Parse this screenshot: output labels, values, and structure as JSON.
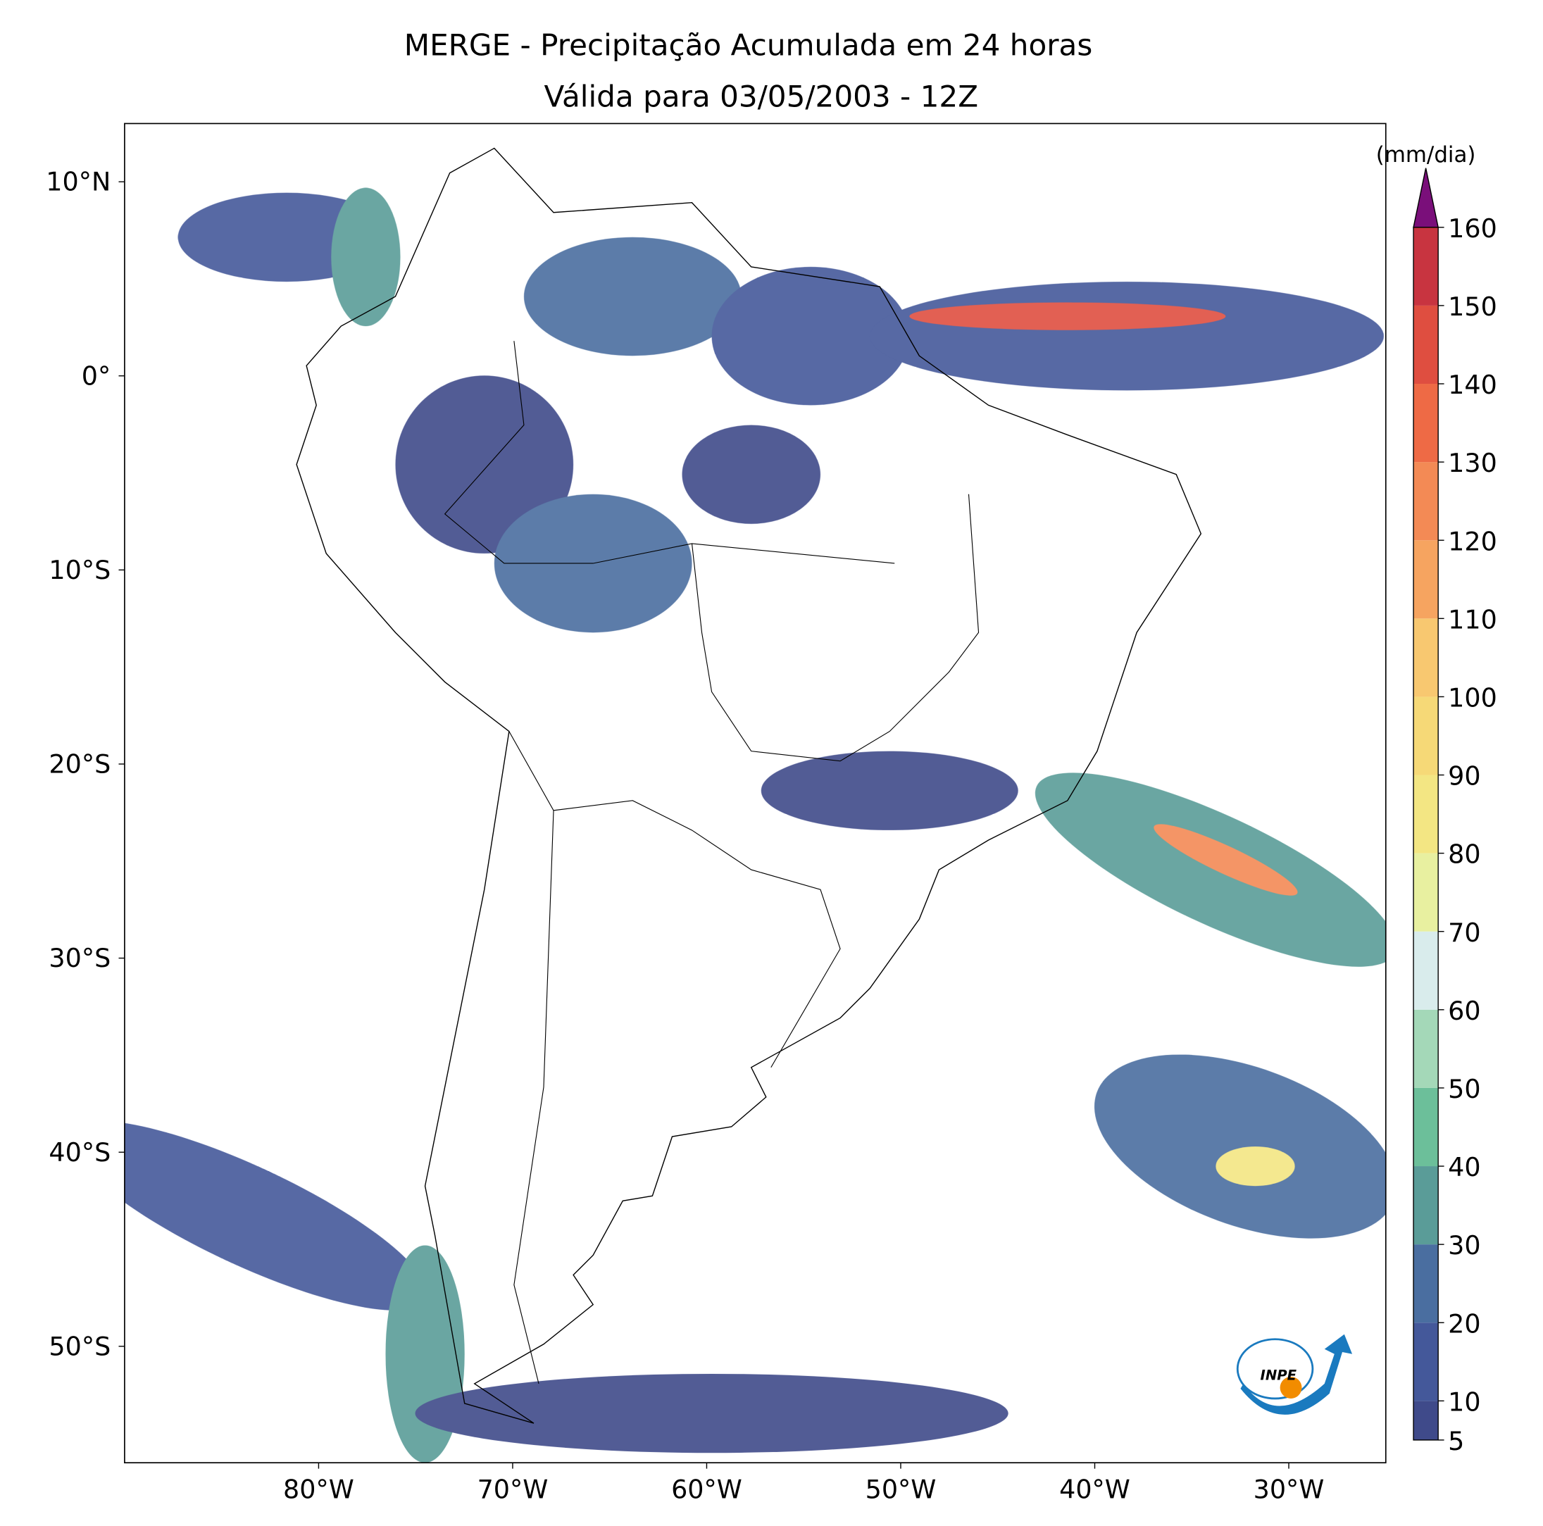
{
  "chart_data": {
    "type": "map",
    "title": "MERGE - Precipitação Acumulada em 24 horas",
    "subtitle": "Válida para 03/05/2003 - 12Z",
    "xlim": [
      -90,
      -25
    ],
    "ylim": [
      -56,
      13
    ],
    "xticks": [
      {
        "value": -80,
        "label": "80°W"
      },
      {
        "value": -70,
        "label": "70°W"
      },
      {
        "value": -60,
        "label": "60°W"
      },
      {
        "value": -50,
        "label": "50°W"
      },
      {
        "value": -40,
        "label": "40°W"
      },
      {
        "value": -30,
        "label": "30°W"
      }
    ],
    "yticks": [
      {
        "value": 10,
        "label": "10°N"
      },
      {
        "value": 0,
        "label": "0°"
      },
      {
        "value": -10,
        "label": "10°S"
      },
      {
        "value": -20,
        "label": "20°S"
      },
      {
        "value": -30,
        "label": "30°S"
      },
      {
        "value": -40,
        "label": "40°S"
      },
      {
        "value": -50,
        "label": "50°S"
      }
    ],
    "colorbar": {
      "label": "(mm/dia)",
      "lim": [
        5,
        160
      ],
      "ticks": [
        5,
        10,
        20,
        30,
        40,
        50,
        60,
        70,
        80,
        90,
        100,
        110,
        120,
        130,
        140,
        150,
        160
      ],
      "colors": [
        "#3f4a8a",
        "#44589a",
        "#4a6ea0",
        "#5a9c98",
        "#6cbf9a",
        "#a4d8b8",
        "#d9ecec",
        "#e8f0a0",
        "#f3e683",
        "#f6d977",
        "#f8c870",
        "#f6a460",
        "#f38a55",
        "#ee6a45",
        "#df4e40",
        "#c83440"
      ],
      "extend": "max",
      "over_color": "#7a0f7a"
    },
    "logo_text": "INPE"
  }
}
